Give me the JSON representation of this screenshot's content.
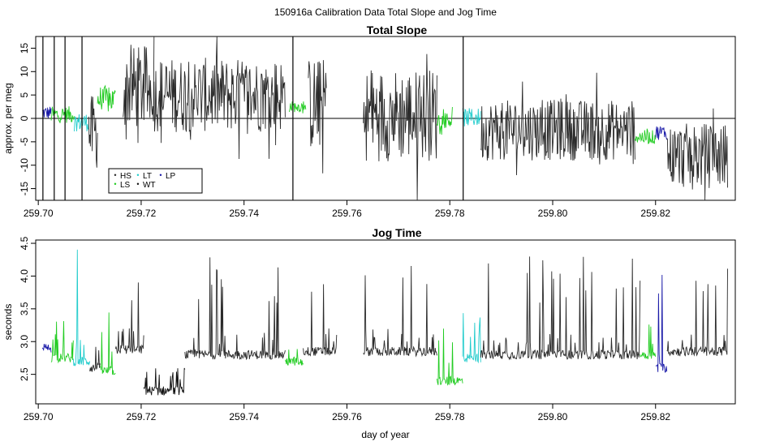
{
  "figure": {
    "suptitle": "150916a   Calibration Data Total Slope and Jog Time"
  },
  "colors": {
    "HS": "#2b2b2b",
    "LS": "#22cc22",
    "LT": "#22cccc",
    "WT": "#111111",
    "LP": "#1a1aa8",
    "trace": "#000000",
    "axis": "#000000",
    "background": "#ffffff"
  },
  "legend": {
    "position": "bottom-left of top panel",
    "entries": [
      "HS",
      "LS",
      "LT",
      "WT",
      "LP"
    ]
  },
  "chart_data": [
    {
      "type": "line",
      "title": "Total Slope",
      "xlabel": "",
      "ylabel": "approx. per meg",
      "xlim": [
        259.6995,
        259.8355
      ],
      "ylim": [
        -17.5,
        17.5
      ],
      "x_ticks": [
        "259.70",
        "259.72",
        "259.74",
        "259.76",
        "259.78",
        "259.80",
        "259.82"
      ],
      "y_ticks": [
        "-15",
        "-10",
        "-5",
        "0",
        "5",
        "10",
        "15"
      ],
      "reference_line": 0,
      "grid": false,
      "segments": [
        {
          "name": "LP",
          "x0": 259.7008,
          "x1": 259.7025,
          "center": 1.2,
          "amp": 1.5
        },
        {
          "name": "LS",
          "x0": 259.7025,
          "x1": 259.707,
          "center": 0.8,
          "amp": 1.8
        },
        {
          "name": "LT",
          "x0": 259.707,
          "x1": 259.7098,
          "center": -0.8,
          "amp": 2.0
        },
        {
          "name": "HS",
          "x0": 259.7098,
          "x1": 259.7115,
          "center": -3.0,
          "amp": 8.0
        },
        {
          "name": "LS",
          "x0": 259.7115,
          "x1": 259.715,
          "center": 4.0,
          "amp": 3.0
        },
        {
          "name": "HS",
          "x0": 259.7165,
          "x1": 259.7225,
          "center": 6.5,
          "amp": 9.0
        },
        {
          "name": "HS",
          "x0": 259.7225,
          "x1": 259.748,
          "center": 5.0,
          "amp": 8.0
        },
        {
          "name": "LS",
          "x0": 259.7488,
          "x1": 259.752,
          "center": 2.5,
          "amp": 1.2
        },
        {
          "name": "HS",
          "x0": 259.7525,
          "x1": 259.756,
          "center": 3.0,
          "amp": 10.0
        },
        {
          "name": "HS",
          "x0": 259.7632,
          "x1": 259.7775,
          "center": 0.8,
          "amp": 10.0
        },
        {
          "name": "LS",
          "x0": 259.7775,
          "x1": 259.7805,
          "center": -0.3,
          "amp": 1.8
        },
        {
          "name": "LT",
          "x0": 259.7825,
          "x1": 259.786,
          "center": 0.2,
          "amp": 2.0
        },
        {
          "name": "HS",
          "x0": 259.786,
          "x1": 259.816,
          "center": -2.5,
          "amp": 6.5
        },
        {
          "name": "LS",
          "x0": 259.816,
          "x1": 259.82,
          "center": -4.0,
          "amp": 1.5
        },
        {
          "name": "LP",
          "x0": 259.82,
          "x1": 259.8222,
          "center": -3.0,
          "amp": 1.6
        },
        {
          "name": "HS",
          "x0": 259.8222,
          "x1": 259.834,
          "center": -8.0,
          "amp": 7.0
        }
      ],
      "vertical_spikes_x": [
        259.7009,
        259.7031,
        259.7052,
        259.7085,
        259.7495,
        259.7826
      ]
    },
    {
      "type": "line",
      "title": "Jog Time",
      "xlabel": "day of year",
      "ylabel": "seconds",
      "xlim": [
        259.6995,
        259.8355
      ],
      "ylim": [
        2.05,
        4.55
      ],
      "x_ticks": [
        "259.70",
        "259.72",
        "259.74",
        "259.76",
        "259.78",
        "259.80",
        "259.82"
      ],
      "y_ticks": [
        "2.5",
        "3.0",
        "3.5",
        "4.0",
        "4.5"
      ],
      "grid": false,
      "segments": [
        {
          "name": "LP",
          "x0": 259.7008,
          "x1": 259.7025,
          "base": 2.9,
          "spike": 3.5
        },
        {
          "name": "LS",
          "x0": 259.7025,
          "x1": 259.7068,
          "base": 2.75,
          "spike": 3.4
        },
        {
          "name": "LT",
          "x0": 259.7068,
          "x1": 259.71,
          "base": 2.7,
          "spike": 4.55
        },
        {
          "name": "HS",
          "x0": 259.71,
          "x1": 259.712,
          "base": 2.6,
          "spike": 4.0
        },
        {
          "name": "LS",
          "x0": 259.712,
          "x1": 259.715,
          "base": 2.55,
          "spike": 3.5
        },
        {
          "name": "HS",
          "x0": 259.715,
          "x1": 259.7205,
          "base": 2.88,
          "spike": 4.0
        },
        {
          "name": "WT",
          "x0": 259.7205,
          "x1": 259.7285,
          "base": 2.25,
          "spike": 2.6
        },
        {
          "name": "HS",
          "x0": 259.7285,
          "x1": 259.748,
          "base": 2.8,
          "spike": 4.3
        },
        {
          "name": "LS",
          "x0": 259.748,
          "x1": 259.7515,
          "base": 2.7,
          "spike": 4.2
        },
        {
          "name": "HS",
          "x0": 259.7515,
          "x1": 259.758,
          "base": 2.85,
          "spike": 4.4
        },
        {
          "name": "HS",
          "x0": 259.7632,
          "x1": 259.7775,
          "base": 2.85,
          "spike": 4.5
        },
        {
          "name": "LS",
          "x0": 259.7775,
          "x1": 259.7825,
          "base": 2.4,
          "spike": 3.2
        },
        {
          "name": "LT",
          "x0": 259.7825,
          "x1": 259.786,
          "base": 2.75,
          "spike": 3.6
        },
        {
          "name": "HS",
          "x0": 259.786,
          "x1": 259.817,
          "base": 2.8,
          "spike": 4.3
        },
        {
          "name": "LS",
          "x0": 259.817,
          "x1": 259.82,
          "base": 2.8,
          "spike": 3.3
        },
        {
          "name": "LP",
          "x0": 259.82,
          "x1": 259.8222,
          "base": 2.6,
          "spike": 4.2
        },
        {
          "name": "HS",
          "x0": 259.8222,
          "x1": 259.834,
          "base": 2.85,
          "spike": 4.2
        }
      ]
    }
  ]
}
